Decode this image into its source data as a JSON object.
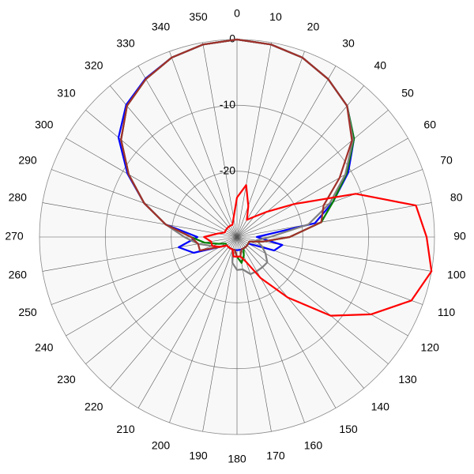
{
  "chart_data": {
    "type": "polar",
    "theta": [
      0,
      10,
      20,
      30,
      40,
      50,
      60,
      70,
      80,
      90,
      100,
      110,
      120,
      130,
      140,
      150,
      160,
      170,
      180,
      190,
      200,
      210,
      220,
      230,
      240,
      250,
      260,
      270,
      280,
      290,
      300,
      310,
      320,
      330,
      340,
      350
    ],
    "rlim": [
      -30,
      0
    ],
    "rticks": [
      -20,
      -10,
      0
    ],
    "grid": true,
    "series": [
      {
        "color": "#0000ff",
        "values": [
          0,
          -0.3,
          -1,
          -2.3,
          -4,
          -6.8,
          -10.5,
          -14.5,
          -18,
          -27,
          -23,
          -24,
          -28,
          -28,
          -28,
          -28,
          -28,
          -28,
          -28,
          -28,
          -28,
          -28,
          -28,
          -28,
          -27,
          -23,
          -21,
          -24,
          -19,
          -15,
          -10.8,
          -6.5,
          -3.8,
          -2.2,
          -1,
          -0.3
        ]
      },
      {
        "color": "#008000",
        "values": [
          0,
          -0.3,
          -1,
          -2.3,
          -4,
          -6.8,
          -10.8,
          -14.5,
          -17,
          -22,
          -26,
          -28,
          -28,
          -28,
          -28,
          -28,
          -27,
          -26,
          -27,
          -28,
          -28,
          -28,
          -28,
          -28,
          -28,
          -27,
          -25,
          -23,
          -19,
          -15,
          -11,
          -7,
          -4,
          -2.3,
          -1,
          -0.3
        ]
      },
      {
        "color": "#808080",
        "values": [
          0,
          -0.3,
          -1,
          -2.3,
          -4,
          -7,
          -11,
          -15,
          -19,
          -25,
          -27,
          -26,
          -25,
          -24,
          -24,
          -24,
          -24,
          -25,
          -25,
          -26,
          -28,
          -28,
          -28,
          -28,
          -27,
          -26,
          -24,
          -22,
          -19,
          -15,
          -11,
          -7,
          -4,
          -2.3,
          -1,
          -0.3
        ]
      },
      {
        "color": "#a0302a",
        "values": [
          0,
          -0.3,
          -1,
          -2.3,
          -4,
          -7.2,
          -12,
          -16,
          -17,
          -22,
          -26,
          -28,
          -28,
          -28,
          -28,
          -28,
          -28,
          -27,
          -27,
          -28,
          -28,
          -28,
          -28,
          -28,
          -27,
          -24,
          -24,
          -23,
          -19,
          -15,
          -11,
          -7,
          -4,
          -2.3,
          -1,
          -0.3
        ]
      },
      {
        "color": "#ff0000",
        "values": [
          -24,
          -22,
          -25,
          -27,
          -26,
          -24,
          -20,
          -10.8,
          -2.4,
          -1.2,
          0,
          -1.8,
          -6.5,
          -11.4,
          -18,
          -22.8,
          -26,
          -27,
          -27,
          -27,
          -28,
          -28,
          -28,
          -28,
          -27,
          -26,
          -26,
          -25,
          -27,
          -28,
          -28,
          -28,
          -28,
          -28,
          -28,
          -27
        ]
      }
    ]
  }
}
